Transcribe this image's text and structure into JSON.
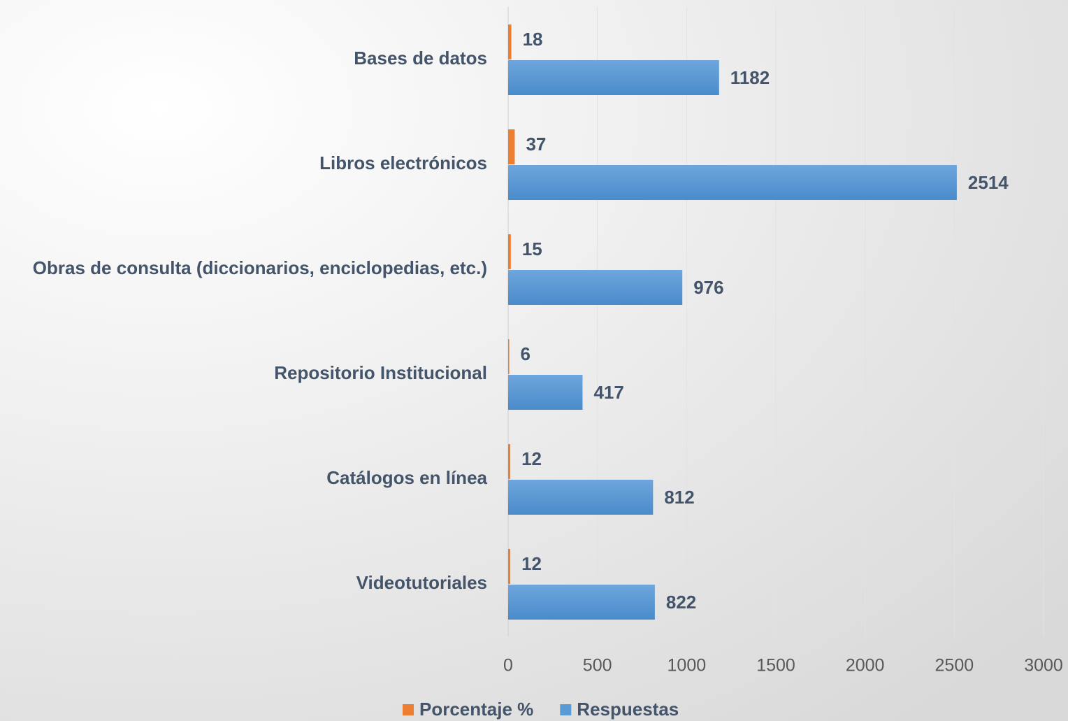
{
  "chart_data": {
    "type": "bar",
    "orientation": "horizontal",
    "categories": [
      "Bases de datos",
      "Libros electrónicos",
      "Obras de consulta (diccionarios, enciclopedias, etc.)",
      "Repositorio Institucional",
      "Catálogos en línea",
      "Videotutoriales"
    ],
    "series": [
      {
        "name": "Porcentaje %",
        "color": "#ed7d31",
        "values": [
          18,
          37,
          15,
          6,
          12,
          12
        ]
      },
      {
        "name": "Respuestas",
        "color": "#5b9bd5",
        "values": [
          1182,
          2514,
          976,
          417,
          812,
          822
        ]
      }
    ],
    "xlim": [
      0,
      3000
    ],
    "xticks": [
      0,
      500,
      1000,
      1500,
      2000,
      2500,
      3000
    ],
    "grid": true,
    "legend": "bottom"
  }
}
